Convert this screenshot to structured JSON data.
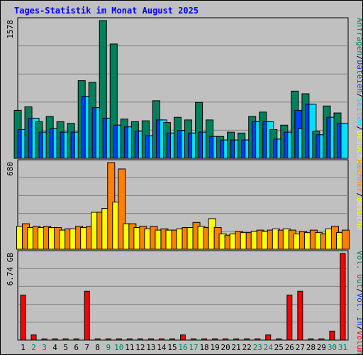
{
  "colors": {
    "background": "#c0c0c0",
    "plot_background": "#c0c0c0",
    "title": "#0000ff",
    "grid": "#808080",
    "hits": "#00805c",
    "files": "#0040ff",
    "pages": "#00e0ff",
    "visits": "#ffff00",
    "sites": "#ff8000",
    "kbytes": "#ff0000",
    "weekday_label": "#000000",
    "weekend_label": "#00805c"
  },
  "chart_data": {
    "title": "Tages-Statistik im Monat August 2025",
    "type": "bar",
    "categories": [
      "1",
      "2",
      "3",
      "4",
      "5",
      "6",
      "7",
      "8",
      "9",
      "10",
      "11",
      "12",
      "13",
      "14",
      "15",
      "16",
      "17",
      "18",
      "19",
      "20",
      "21",
      "22",
      "23",
      "24",
      "25",
      "26",
      "27",
      "28",
      "29",
      "30",
      "31"
    ],
    "weekend_days": [
      "2",
      "3",
      "9",
      "10",
      "16",
      "17",
      "23",
      "24",
      "30",
      "31"
    ],
    "panels": [
      {
        "id": "requests",
        "ymax_label": "1578",
        "ylim": [
          0,
          1578
        ],
        "right_label_parts": [
          "Anfragen",
          "/",
          "Dateien",
          "/",
          "Seiten",
          "/",
          "Besuche"
        ],
        "series": [
          {
            "name": "Anfragen",
            "values": [
              550,
              590,
              420,
              480,
              420,
              400,
              890,
              870,
              1578,
              1310,
              450,
              420,
              430,
              660,
              410,
              470,
              440,
              640,
              440,
              250,
              300,
              290,
              480,
              530,
              330,
              380,
              770,
              740,
              310,
              600,
              520
            ]
          },
          {
            "name": "Dateien",
            "values": [
              330,
              460,
              300,
              340,
              300,
              300,
              710,
              580,
              460,
              380,
              360,
              310,
              260,
              440,
              290,
              320,
              290,
              300,
              250,
              210,
              210,
              210,
              420,
              420,
              220,
              300,
              550,
              620,
              270,
              470,
              400
            ]
          },
          {
            "name": "Seiten",
            "values": [
              330,
              460,
              300,
              340,
              300,
              300,
              710,
              580,
              460,
              380,
              360,
              310,
              260,
              440,
              290,
              320,
              290,
              300,
              250,
              210,
              210,
              210,
              420,
              420,
              220,
              300,
              340,
              620,
              270,
              470,
              400
            ]
          }
        ]
      },
      {
        "id": "visitors",
        "ymax_label": "680",
        "ylim": [
          0,
          680
        ],
        "right_label_parts": [
          "Rechner",
          "/",
          "Besuche"
        ],
        "series": [
          {
            "name": "Besuche",
            "values": [
              180,
              170,
              170,
              170,
              150,
              160,
              170,
              290,
              320,
              370,
              200,
              170,
              160,
              150,
              150,
              160,
              170,
              180,
              240,
              120,
              120,
              130,
              140,
              140,
              160,
              160,
              120,
              130,
              130,
              160,
              130
            ]
          },
          {
            "name": "Rechner",
            "values": [
              200,
              180,
              180,
              170,
              160,
              180,
              180,
              290,
              680,
              630,
              200,
              180,
              180,
              160,
              150,
              170,
              210,
              170,
              170,
              110,
              140,
              130,
              150,
              150,
              150,
              150,
              140,
              150,
              120,
              180,
              150
            ]
          }
        ]
      },
      {
        "id": "volume",
        "ymax_label": "6.74 GB",
        "ylim": [
          0,
          6.74
        ],
        "right_label_parts": [
          "Vol. Out",
          "/",
          "Vol. In",
          "/",
          "Volumen"
        ],
        "series": [
          {
            "name": "Volumen",
            "values": [
              3.5,
              0.4,
              0.1,
              0.1,
              0.1,
              0.1,
              3.8,
              0.1,
              0.1,
              0.1,
              0.1,
              0.1,
              0.1,
              0.1,
              0.1,
              0.4,
              0.1,
              0.1,
              0.1,
              0.1,
              0.1,
              0.1,
              0.1,
              0.4,
              0.1,
              3.5,
              3.8,
              0.1,
              0.1,
              0.7,
              6.74
            ]
          }
        ]
      }
    ],
    "grid": true
  }
}
